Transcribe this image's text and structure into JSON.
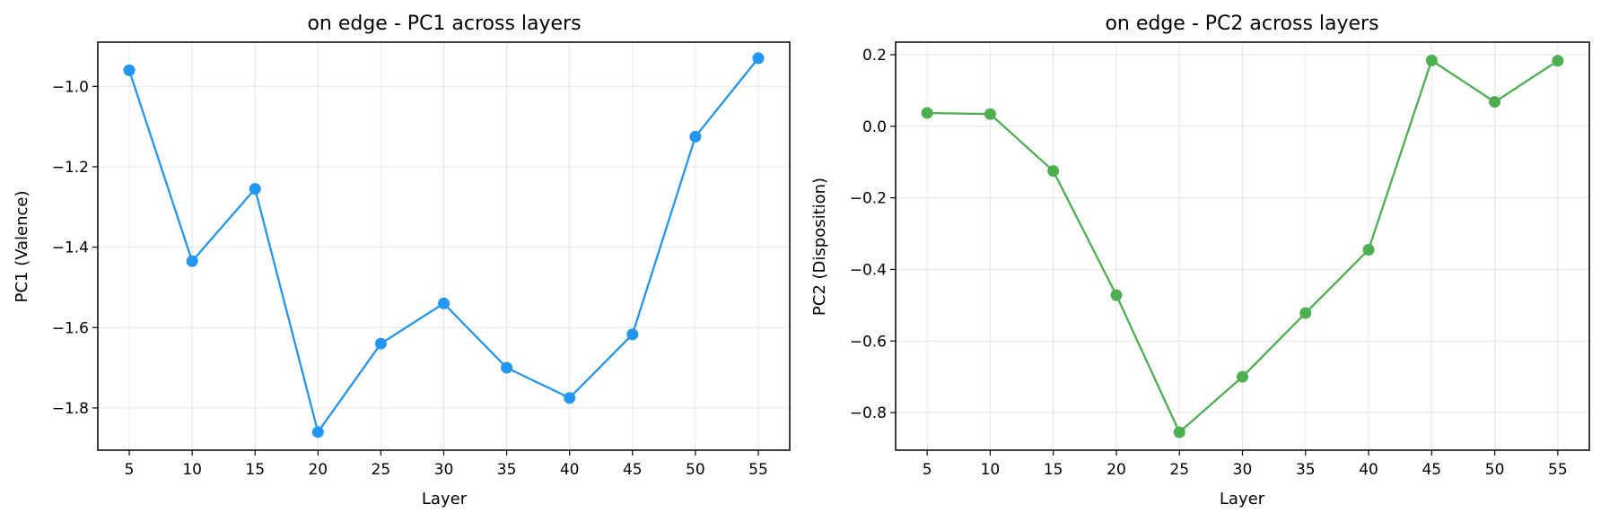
{
  "chart_data": [
    {
      "type": "line",
      "title": "on edge - PC1 across layers",
      "xlabel": "Layer",
      "ylabel": "PC1 (Valence)",
      "x": [
        5,
        10,
        15,
        20,
        25,
        30,
        35,
        40,
        45,
        50,
        55
      ],
      "xticks": [
        5,
        10,
        15,
        20,
        25,
        30,
        35,
        40,
        45,
        50,
        55
      ],
      "xlim": [
        2.5,
        57.5
      ],
      "yticks": [
        -1.0,
        -1.2,
        -1.4,
        -1.6,
        -1.8
      ],
      "yticklabels": [
        "−1.0",
        "−1.2",
        "−1.4",
        "−1.6",
        "−1.8"
      ],
      "ylim": [
        -1.905,
        -0.89
      ],
      "grid": true,
      "series": [
        {
          "color": "#2196f3",
          "values": [
            -0.96,
            -1.435,
            -1.255,
            -1.86,
            -1.64,
            -1.54,
            -1.7,
            -1.775,
            -1.617,
            -1.125,
            -0.93
          ]
        }
      ]
    },
    {
      "type": "line",
      "title": "on edge - PC2 across layers",
      "xlabel": "Layer",
      "ylabel": "PC2 (Disposition)",
      "x": [
        5,
        10,
        15,
        20,
        25,
        30,
        35,
        40,
        45,
        50,
        55
      ],
      "xticks": [
        5,
        10,
        15,
        20,
        25,
        30,
        35,
        40,
        45,
        50,
        55
      ],
      "xlim": [
        2.5,
        57.5
      ],
      "yticks": [
        0.2,
        0.0,
        -0.2,
        -0.4,
        -0.6,
        -0.8
      ],
      "yticklabels": [
        "0.2",
        "0.0",
        "−0.2",
        "−0.4",
        "−0.6",
        "−0.8"
      ],
      "ylim": [
        -0.905,
        0.235
      ],
      "grid": true,
      "series": [
        {
          "color": "#4caf50",
          "values": [
            0.037,
            0.034,
            -0.125,
            -0.472,
            -0.855,
            -0.7,
            -0.522,
            -0.345,
            0.184,
            0.068,
            0.183
          ]
        }
      ]
    }
  ]
}
